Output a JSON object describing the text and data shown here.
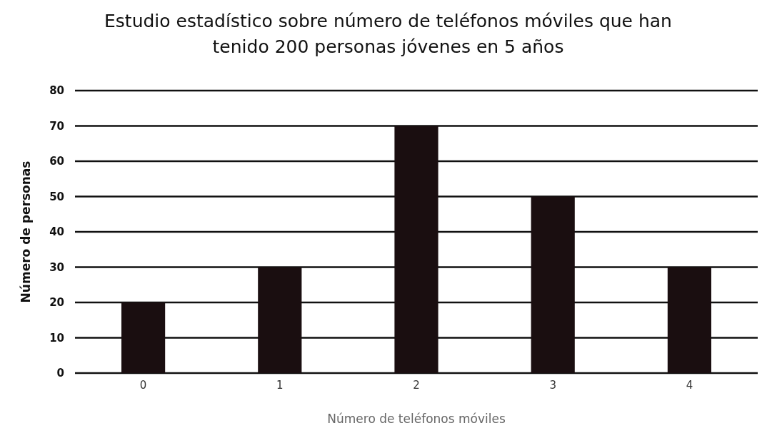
{
  "chart_data": {
    "type": "bar",
    "title": "Estudio estadístico sobre número de teléfonos móviles que han tenido 200 personas jóvenes en 5 años",
    "xlabel": "Número de teléfonos móviles",
    "ylabel": "Número de personas",
    "categories": [
      "0",
      "1",
      "2",
      "3",
      "4"
    ],
    "values": [
      20,
      30,
      70,
      50,
      30
    ],
    "color": "#1a0e10",
    "ylim": [
      0,
      80
    ],
    "yticks": [
      0,
      10,
      20,
      30,
      40,
      50,
      60,
      70,
      80
    ],
    "grid": "y"
  }
}
